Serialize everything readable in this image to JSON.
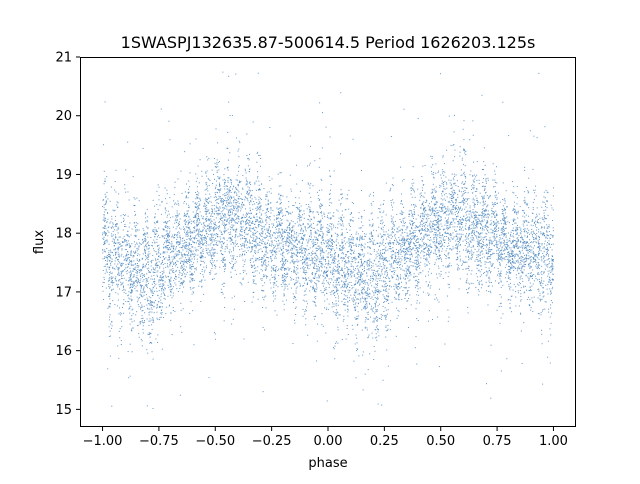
{
  "chart_data": {
    "type": "scatter",
    "title": "1SWASPJ132635.87-500614.5 Period 1626203.125s",
    "xlabel": "phase",
    "ylabel": "flux",
    "xlim": [
      -1.1,
      1.1
    ],
    "ylim": [
      14.7,
      21.0
    ],
    "x_ticks": [
      -1.0,
      -0.75,
      -0.5,
      -0.25,
      0.0,
      0.25,
      0.5,
      0.75,
      1.0
    ],
    "x_tick_labels": [
      "−1.00",
      "−0.75",
      "−0.50",
      "−0.25",
      "0.00",
      "0.25",
      "0.50",
      "0.75",
      "1.00"
    ],
    "y_ticks": [
      15,
      16,
      17,
      18,
      19,
      20,
      21
    ],
    "y_tick_labels": [
      "15",
      "16",
      "17",
      "18",
      "19",
      "20",
      "21"
    ],
    "grid": false,
    "marker_color": "#4a86bd",
    "series_profile": {
      "phase": [
        -1.0,
        -0.95,
        -0.9,
        -0.85,
        -0.8,
        -0.75,
        -0.7,
        -0.65,
        -0.6,
        -0.55,
        -0.5,
        -0.45,
        -0.4,
        -0.35,
        -0.3,
        -0.25,
        -0.2,
        -0.15,
        -0.1,
        -0.05,
        0.0,
        0.05,
        0.1,
        0.15,
        0.2,
        0.25,
        0.3,
        0.35,
        0.4,
        0.45,
        0.5,
        0.55,
        0.6,
        0.65,
        0.7,
        0.75,
        0.8,
        0.85,
        0.9,
        0.95,
        1.0
      ],
      "flux_center": [
        17.75,
        17.6,
        17.5,
        17.35,
        17.25,
        17.4,
        17.6,
        17.75,
        17.9,
        18.05,
        18.15,
        18.25,
        18.2,
        18.1,
        18.0,
        17.9,
        17.8,
        17.75,
        17.7,
        17.65,
        17.6,
        17.5,
        17.4,
        17.3,
        17.25,
        17.4,
        17.6,
        17.75,
        17.9,
        18.05,
        18.15,
        18.25,
        18.2,
        18.1,
        18.0,
        17.9,
        17.8,
        17.75,
        17.7,
        17.65,
        17.6
      ],
      "flux_spread": [
        0.45,
        0.5,
        0.5,
        0.5,
        0.5,
        0.45,
        0.45,
        0.4,
        0.4,
        0.4,
        0.45,
        0.5,
        0.5,
        0.45,
        0.45,
        0.4,
        0.4,
        0.4,
        0.45,
        0.45,
        0.45,
        0.5,
        0.5,
        0.5,
        0.5,
        0.45,
        0.45,
        0.4,
        0.4,
        0.4,
        0.45,
        0.5,
        0.5,
        0.45,
        0.45,
        0.4,
        0.4,
        0.4,
        0.45,
        0.45,
        0.45
      ]
    }
  }
}
